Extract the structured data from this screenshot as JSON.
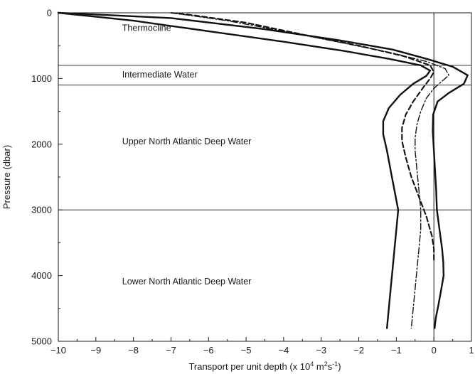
{
  "chart_data": {
    "type": "line",
    "xlabel": "Transport per unit depth (x 10^4 m^2s^-1)",
    "xlabel_parts": {
      "main": "Transport per unit depth (x 10",
      "sup1": "4",
      "mid": " m",
      "sup2": "2",
      "tail": "s",
      "sup3": "-1",
      "end": ")"
    },
    "ylabel": "Pressure (dbar)",
    "xlim": [
      -10,
      1
    ],
    "ylim": [
      0,
      5000
    ],
    "y_inverted": true,
    "x_ticks": [
      -10,
      -9,
      -8,
      -7,
      -6,
      -5,
      -4,
      -3,
      -2,
      -1,
      0,
      1
    ],
    "y_ticks": [
      0,
      1000,
      2000,
      3000,
      4000,
      5000
    ],
    "grid": false,
    "legend": "none",
    "reference_lines": {
      "vertical_x": 0,
      "horizontal_y": [
        800,
        1100,
        3000
      ]
    },
    "regions": [
      {
        "label": "Thermocline",
        "x": -8.3,
        "y": 230
      },
      {
        "label": "Intermediate Water",
        "x": -8.3,
        "y": 940
      },
      {
        "label": "Upper North Atlantic Deep Water",
        "x": -8.3,
        "y": 1960
      },
      {
        "label": "Lower North Atlantic Deep Water",
        "x": -8.3,
        "y": 4090
      }
    ],
    "series": [
      {
        "style": "solid-outer",
        "points": [
          [
            -10,
            0
          ],
          [
            -7,
            80
          ],
          [
            -4.5,
            250
          ],
          [
            -2.5,
            420
          ],
          [
            -1.1,
            560
          ],
          [
            -0.2,
            700
          ],
          [
            0.5,
            820
          ],
          [
            0.9,
            950
          ],
          [
            0.8,
            1080
          ],
          [
            0.4,
            1220
          ],
          [
            0.1,
            1350
          ],
          [
            -0.02,
            1550
          ],
          [
            -0.03,
            1800
          ],
          [
            0.0,
            2100
          ],
          [
            0.03,
            2400
          ],
          [
            0.06,
            2700
          ],
          [
            0.08,
            3000
          ],
          [
            0.15,
            3300
          ],
          [
            0.22,
            3600
          ],
          [
            0.25,
            3800
          ],
          [
            0.26,
            4000
          ],
          [
            0.2,
            4200
          ],
          [
            0.12,
            4450
          ],
          [
            0.05,
            4650
          ],
          [
            0.02,
            4800
          ]
        ]
      },
      {
        "style": "solid-inner",
        "points": [
          [
            -10,
            0
          ],
          [
            -8,
            120
          ],
          [
            -6,
            280
          ],
          [
            -4,
            440
          ],
          [
            -2.4,
            580
          ],
          [
            -1.2,
            700
          ],
          [
            -0.35,
            800
          ],
          [
            -0.1,
            880
          ],
          [
            -0.2,
            960
          ],
          [
            -0.55,
            1080
          ],
          [
            -0.9,
            1250
          ],
          [
            -1.2,
            1450
          ],
          [
            -1.35,
            1650
          ],
          [
            -1.35,
            1850
          ],
          [
            -1.25,
            2100
          ],
          [
            -1.15,
            2400
          ],
          [
            -1.05,
            2700
          ],
          [
            -0.95,
            3000
          ],
          [
            -1.0,
            3300
          ],
          [
            -1.05,
            3600
          ],
          [
            -1.1,
            3900
          ],
          [
            -1.15,
            4200
          ],
          [
            -1.2,
            4500
          ],
          [
            -1.25,
            4800
          ]
        ]
      },
      {
        "style": "dashed",
        "points": [
          [
            -7,
            0
          ],
          [
            -6.5,
            30
          ],
          [
            -5,
            150
          ],
          [
            -3.5,
            330
          ],
          [
            -2,
            500
          ],
          [
            -0.8,
            660
          ],
          [
            -0.1,
            800
          ],
          [
            0.0,
            900
          ],
          [
            -0.1,
            1000
          ],
          [
            -0.3,
            1150
          ],
          [
            -0.55,
            1350
          ],
          [
            -0.75,
            1550
          ],
          [
            -0.85,
            1750
          ],
          [
            -0.85,
            1950
          ],
          [
            -0.75,
            2200
          ],
          [
            -0.6,
            2500
          ],
          [
            -0.4,
            2800
          ],
          [
            -0.2,
            3100
          ],
          [
            -0.05,
            3400
          ],
          [
            0.0,
            3600
          ],
          [
            0.0,
            3800
          ]
        ]
      },
      {
        "style": "dash-dot",
        "points": [
          [
            -7,
            0
          ],
          [
            -5.5,
            120
          ],
          [
            -4,
            280
          ],
          [
            -2.5,
            450
          ],
          [
            -1.2,
            600
          ],
          [
            -0.2,
            740
          ],
          [
            0.3,
            850
          ],
          [
            0.4,
            950
          ],
          [
            0.2,
            1050
          ],
          [
            0,
            1150
          ],
          [
            -0.2,
            1300
          ],
          [
            -0.35,
            1500
          ],
          [
            -0.45,
            1700
          ],
          [
            -0.5,
            1900
          ],
          [
            -0.5,
            2100
          ],
          [
            -0.45,
            2400
          ],
          [
            -0.4,
            2700
          ],
          [
            -0.35,
            3000
          ],
          [
            -0.35,
            3300
          ],
          [
            -0.4,
            3600
          ],
          [
            -0.45,
            3900
          ],
          [
            -0.5,
            4200
          ],
          [
            -0.55,
            4500
          ],
          [
            -0.6,
            4800
          ]
        ]
      }
    ]
  }
}
